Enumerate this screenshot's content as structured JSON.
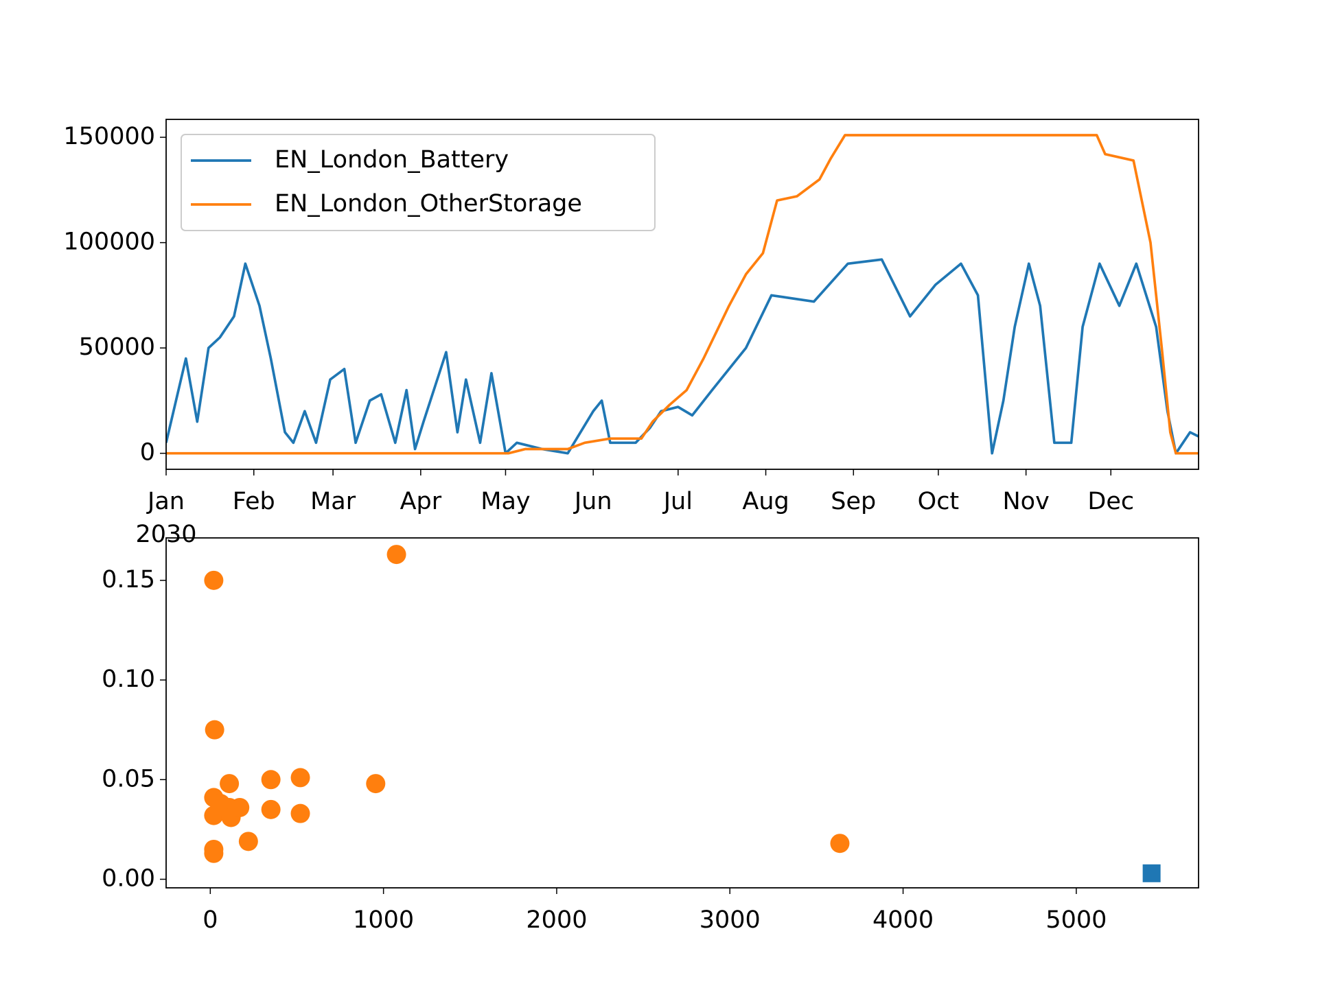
{
  "chart_data": [
    {
      "type": "line",
      "year_label": "2030",
      "xlim": [
        0,
        365
      ],
      "xticks": [
        {
          "value": 0,
          "label": "Jan"
        },
        {
          "value": 31,
          "label": "Feb"
        },
        {
          "value": 59,
          "label": "Mar"
        },
        {
          "value": 90,
          "label": "Apr"
        },
        {
          "value": 120,
          "label": "May"
        },
        {
          "value": 151,
          "label": "Jun"
        },
        {
          "value": 181,
          "label": "Jul"
        },
        {
          "value": 212,
          "label": "Aug"
        },
        {
          "value": 243,
          "label": "Sep"
        },
        {
          "value": 273,
          "label": "Oct"
        },
        {
          "value": 304,
          "label": "Nov"
        },
        {
          "value": 334,
          "label": "Dec"
        }
      ],
      "ylim": [
        -7600,
        158500
      ],
      "yticks": [
        0,
        50000,
        100000,
        150000
      ],
      "legend": "upper left",
      "series": [
        {
          "name": "EN_London_Battery",
          "color": "#1f77b4",
          "x": [
            0,
            7,
            11,
            15,
            19,
            24,
            28,
            33,
            37,
            42,
            45,
            49,
            53,
            58,
            63,
            67,
            72,
            76,
            81,
            85,
            88,
            91,
            99,
            103,
            106,
            111,
            115,
            120,
            124,
            133,
            142,
            151,
            154,
            157,
            166,
            171,
            175,
            181,
            186,
            193,
            205,
            214,
            229,
            241,
            253,
            263,
            272,
            281,
            287,
            292,
            296,
            300,
            305,
            309,
            314,
            320,
            324,
            330,
            337,
            343,
            350,
            354,
            357,
            362,
            365
          ],
          "values": [
            5000,
            45000,
            15000,
            50000,
            55000,
            65000,
            90000,
            70000,
            45000,
            10000,
            5000,
            20000,
            5000,
            35000,
            40000,
            5000,
            25000,
            28000,
            5000,
            30000,
            2000,
            15000,
            48000,
            10000,
            35000,
            5000,
            38000,
            0,
            5000,
            2000,
            0,
            20000,
            25000,
            5000,
            5000,
            12000,
            20000,
            22000,
            18000,
            30000,
            50000,
            75000,
            72000,
            90000,
            92000,
            65000,
            80000,
            90000,
            75000,
            0,
            25000,
            60000,
            90000,
            70000,
            5000,
            5000,
            60000,
            90000,
            70000,
            90000,
            60000,
            20000,
            0,
            10000,
            8000
          ]
        },
        {
          "name": "EN_London_OtherStorage",
          "color": "#ff7f0e",
          "x": [
            0,
            121,
            127,
            142,
            148,
            157,
            168,
            172,
            178,
            184,
            190,
            199,
            205,
            211,
            216,
            223,
            231,
            235,
            240,
            329,
            332,
            342,
            348,
            352,
            355,
            357,
            365
          ],
          "values": [
            0,
            0,
            2000,
            2000,
            5000,
            7000,
            7000,
            15000,
            23000,
            30000,
            45000,
            70000,
            85000,
            95000,
            120000,
            122000,
            130000,
            140000,
            151000,
            151000,
            142000,
            139000,
            100000,
            50000,
            10000,
            0,
            0
          ]
        }
      ]
    },
    {
      "type": "scatter",
      "xlim": [
        -255,
        5706
      ],
      "xticks": [
        0,
        1000,
        2000,
        3000,
        4000,
        5000
      ],
      "ylim": [
        -0.0043,
        0.1713
      ],
      "yticks": [
        {
          "value": 0,
          "label": "0.00"
        },
        0.05,
        {
          "value": 0.1,
          "label": "0.10"
        },
        0.15
      ],
      "series": [
        {
          "color": "#ff7f0e",
          "marker": "circle",
          "x": [
            20,
            1075,
            25,
            20,
            20,
            20,
            20,
            60,
            110,
            110,
            120,
            170,
            220,
            350,
            350,
            520,
            520,
            955,
            3635
          ],
          "values": [
            0.15,
            0.163,
            0.075,
            0.041,
            0.032,
            0.015,
            0.013,
            0.038,
            0.048,
            0.036,
            0.031,
            0.036,
            0.019,
            0.05,
            0.035,
            0.051,
            0.033,
            0.048,
            0.018
          ]
        },
        {
          "color": "#1f77b4",
          "marker": "square",
          "x": [
            5435
          ],
          "values": [
            0.003
          ]
        }
      ]
    }
  ]
}
